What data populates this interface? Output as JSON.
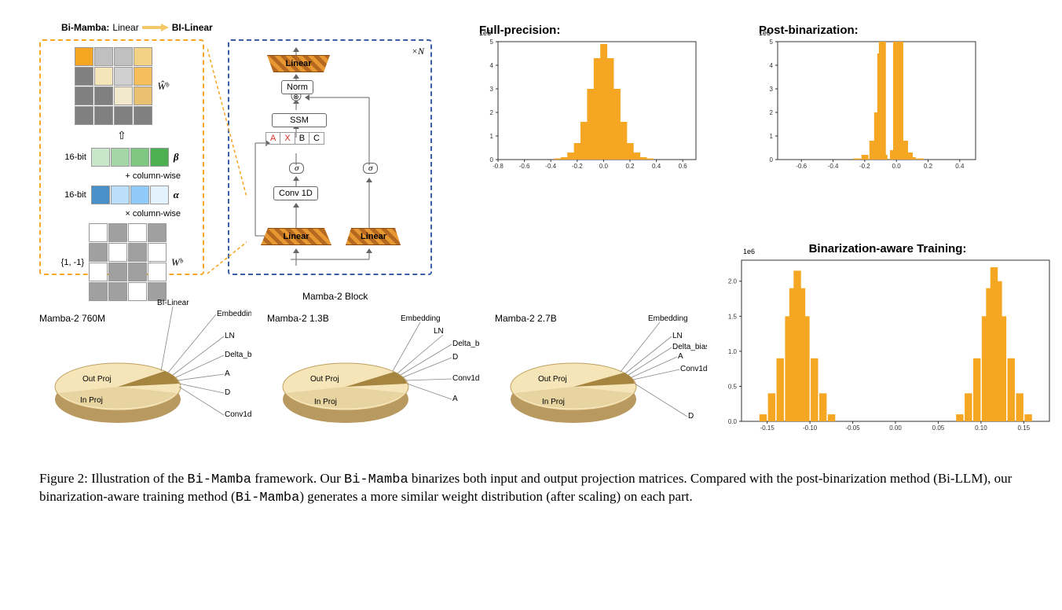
{
  "header": {
    "prefix": "Bi-Mamba:",
    "from": "Linear",
    "to": "BI-Linear"
  },
  "bilinear": {
    "w_hat_label": "Ŵᵇ",
    "beta_label": "β",
    "alpha_label": "α",
    "bitlabel": "16-bit",
    "col_plus": "+  column-wise",
    "col_times": "×  column-wise",
    "bin_set": "{1, -1}",
    "wb_label": "Wᵇ",
    "colors_top": [
      "#f5a623",
      "#c0c0c0",
      "#c0c0c0",
      "#f2d386",
      "#808080",
      "#f5e5b8",
      "#d0d0d0",
      "#f5be5a",
      "#808080",
      "#808080",
      "#f2e9cc",
      "#e8c070",
      "#808080",
      "#808080",
      "#808080",
      "#808080"
    ],
    "colors_beta": [
      "#c8e6c9",
      "#a5d6a7",
      "#81c784",
      "#4caf50"
    ],
    "colors_alpha": [
      "#4a90c8",
      "#bbdefb",
      "#90caf9",
      "#e3f2fd"
    ],
    "colors_bin": [
      "#ffffff",
      "#a0a0a0",
      "#ffffff",
      "#a0a0a0",
      "#a0a0a0",
      "#ffffff",
      "#a0a0a0",
      "#ffffff",
      "#ffffff",
      "#a0a0a0",
      "#a0a0a0",
      "#ffffff",
      "#a0a0a0",
      "#a0a0a0",
      "#ffffff",
      "#a0a0a0"
    ]
  },
  "mamba_block": {
    "xn_label": "×N",
    "linear_label": "Linear",
    "norm_label": "Norm",
    "ssm_label": "SSM",
    "conv_label": "Conv 1D",
    "sigma": "σ",
    "A": "A",
    "X": "X",
    "B": "B",
    "C": "C",
    "mamba2_block_name": "Mamba-2 Block",
    "bilinear_name": "BI-Linear"
  },
  "charts": {
    "fp_title": "Full-precision:",
    "pb_title": "Post-binarization:",
    "bat_title": "Binarization-aware Training:",
    "exp_label": "1e6",
    "fp": {
      "xlim": [
        -0.8,
        0.7
      ],
      "xticks": [
        "-0.8",
        "-0.6",
        "-0.4",
        "-0.2",
        "0.0",
        "0.2",
        "0.4",
        "0.6"
      ],
      "ylim": [
        0,
        5
      ],
      "yticks": [
        "0",
        "1",
        "2",
        "3",
        "4",
        "5"
      ],
      "bars": [
        [
          -0.35,
          0.05
        ],
        [
          -0.3,
          0.1
        ],
        [
          -0.25,
          0.3
        ],
        [
          -0.2,
          0.7
        ],
        [
          -0.15,
          1.6
        ],
        [
          -0.1,
          3.0
        ],
        [
          -0.05,
          4.3
        ],
        [
          0.0,
          4.9
        ],
        [
          0.05,
          4.3
        ],
        [
          0.1,
          3.0
        ],
        [
          0.15,
          1.6
        ],
        [
          0.2,
          0.7
        ],
        [
          0.25,
          0.3
        ],
        [
          0.3,
          0.1
        ],
        [
          0.35,
          0.05
        ]
      ],
      "bar_color": "#f5a623"
    },
    "pb": {
      "xlim": [
        -0.75,
        0.5
      ],
      "xticks": [
        "-0.6",
        "-0.4",
        "-0.2",
        "0.0",
        "0.2",
        "0.4"
      ],
      "ylim": [
        0,
        5
      ],
      "yticks": [
        "0",
        "1",
        "2",
        "3",
        "4",
        "5"
      ],
      "bars": [
        [
          -0.25,
          0.05
        ],
        [
          -0.2,
          0.2
        ],
        [
          -0.15,
          0.8
        ],
        [
          -0.12,
          2.0
        ],
        [
          -0.1,
          4.5
        ],
        [
          -0.09,
          5.0
        ],
        [
          -0.08,
          0.2
        ],
        [
          -0.02,
          0.4
        ],
        [
          0.0,
          5.0
        ],
        [
          0.02,
          5.0
        ],
        [
          0.03,
          0.3
        ],
        [
          0.05,
          0.8
        ],
        [
          0.08,
          0.3
        ],
        [
          0.1,
          0.1
        ],
        [
          0.15,
          0.05
        ]
      ],
      "bar_color": "#f5a623"
    },
    "bat": {
      "xlim": [
        -0.18,
        0.18
      ],
      "xticks": [
        "-0.15",
        "-0.10",
        "-0.05",
        "0.00",
        "0.05",
        "0.10",
        "0.15"
      ],
      "ylim": [
        0,
        2.3
      ],
      "yticks": [
        "0.0",
        "0.5",
        "1.0",
        "1.5",
        "2.0"
      ],
      "bars": [
        [
          -0.155,
          0.1
        ],
        [
          -0.145,
          0.4
        ],
        [
          -0.135,
          0.9
        ],
        [
          -0.125,
          1.5
        ],
        [
          -0.12,
          1.9
        ],
        [
          -0.115,
          2.15
        ],
        [
          -0.11,
          1.9
        ],
        [
          -0.105,
          1.5
        ],
        [
          -0.095,
          0.9
        ],
        [
          -0.085,
          0.4
        ],
        [
          -0.075,
          0.1
        ],
        [
          0.075,
          0.1
        ],
        [
          0.085,
          0.4
        ],
        [
          0.095,
          0.9
        ],
        [
          0.105,
          1.5
        ],
        [
          0.11,
          1.9
        ],
        [
          0.115,
          2.2
        ],
        [
          0.12,
          2.0
        ],
        [
          0.125,
          1.5
        ],
        [
          0.135,
          0.9
        ],
        [
          0.145,
          0.4
        ],
        [
          0.155,
          0.1
        ]
      ],
      "bar_color": "#f5a623"
    }
  },
  "pies": [
    {
      "title": "Mamba-2 760M",
      "labels": [
        "BI-Linear",
        "Embedding",
        "LN",
        "Delta_bias",
        "A",
        "D",
        "Conv1d",
        "Out Proj",
        "In Proj"
      ]
    },
    {
      "title": "Mamba-2 1.3B",
      "labels": [
        "Embedding",
        "LN",
        "Delta_bias",
        "D",
        "Conv1d",
        "A",
        "Out Proj",
        "In Proj"
      ]
    },
    {
      "title": "Mamba-2 2.7B",
      "labels": [
        "Embedding",
        "LN",
        "Delta_bias",
        "A",
        "Conv1d",
        "D",
        "Out Proj",
        "In Proj"
      ]
    }
  ],
  "pie_colors": {
    "in_proj": "#e8d4a0",
    "out_proj": "#f5e5b8",
    "slice": "#a68540",
    "side": "#b89960"
  },
  "caption": {
    "figure_num": "Figure 2:",
    "text1": "Illustration of the ",
    "bimamba": "Bi-Mamba",
    "text2": " framework. Our ",
    "text3": " binarizes both input and output projection matrices. Compared with the post-binarization method (Bi-LLM), our binarization-aware training method (",
    "text4": ") generates a more similar weight distribution (after scaling) on each part."
  }
}
